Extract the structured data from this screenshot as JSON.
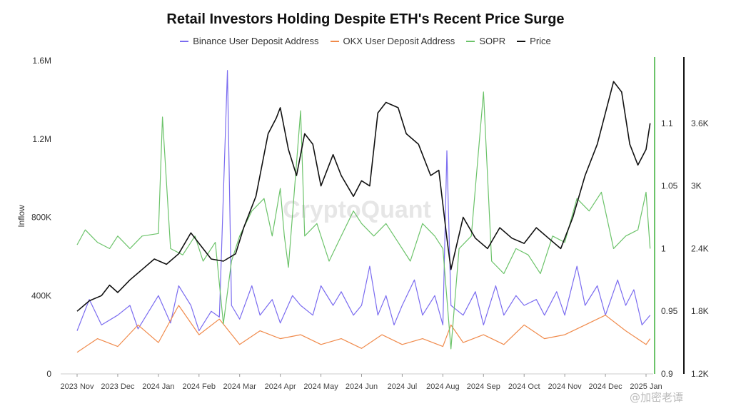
{
  "chart_data": {
    "type": "line",
    "title": "Retail Investors Holding Despite ETH's Recent Price Surge",
    "ylabel": "Inflow",
    "watermark": "CryptoQuant",
    "attribution": "@加密老谭",
    "x_ticks": [
      "2023 Nov",
      "2023 Dec",
      "2024 Jan",
      "2024 Feb",
      "2024 Mar",
      "2024 Apr",
      "2024 May",
      "2024 Jun",
      "2024 Jul",
      "2024 Aug",
      "2024 Sep",
      "2024 Oct",
      "2024 Nov",
      "2024 Dec",
      "2025 Jan"
    ],
    "axes": {
      "inflow": {
        "min": 0,
        "max": 1600000,
        "ticks": [
          "0",
          "400K",
          "800K",
          "1.2M",
          "1.6M"
        ]
      },
      "sopr": {
        "min": 0.9,
        "max": 1.15,
        "ticks": [
          "0.9",
          "0.95",
          "1",
          "1.05",
          "1.1"
        ]
      },
      "price": {
        "min": 1200,
        "max": 4200,
        "ticks": [
          "1.2K",
          "1.8K",
          "2.4K",
          "3K",
          "3.6K"
        ]
      }
    },
    "legend_position": "top-center",
    "grid": false,
    "series": [
      {
        "name": "Binance User Deposit Address",
        "color": "#7b6cf0",
        "axis": "inflow",
        "points": [
          [
            0,
            220000
          ],
          [
            0.3,
            380000
          ],
          [
            0.6,
            250000
          ],
          [
            1,
            300000
          ],
          [
            1.3,
            350000
          ],
          [
            1.5,
            230000
          ],
          [
            2,
            400000
          ],
          [
            2.3,
            260000
          ],
          [
            2.5,
            450000
          ],
          [
            2.8,
            350000
          ],
          [
            3,
            220000
          ],
          [
            3.3,
            320000
          ],
          [
            3.5,
            290000
          ],
          [
            3.7,
            1550000
          ],
          [
            3.8,
            350000
          ],
          [
            4,
            280000
          ],
          [
            4.3,
            450000
          ],
          [
            4.5,
            300000
          ],
          [
            4.8,
            380000
          ],
          [
            5,
            260000
          ],
          [
            5.3,
            400000
          ],
          [
            5.5,
            350000
          ],
          [
            5.8,
            300000
          ],
          [
            6,
            450000
          ],
          [
            6.3,
            350000
          ],
          [
            6.5,
            420000
          ],
          [
            6.8,
            300000
          ],
          [
            7,
            350000
          ],
          [
            7.2,
            550000
          ],
          [
            7.4,
            300000
          ],
          [
            7.6,
            400000
          ],
          [
            7.8,
            250000
          ],
          [
            8,
            350000
          ],
          [
            8.3,
            480000
          ],
          [
            8.5,
            300000
          ],
          [
            8.8,
            400000
          ],
          [
            9,
            250000
          ],
          [
            9.1,
            1140000
          ],
          [
            9.2,
            350000
          ],
          [
            9.5,
            300000
          ],
          [
            9.8,
            420000
          ],
          [
            10,
            250000
          ],
          [
            10.3,
            450000
          ],
          [
            10.5,
            300000
          ],
          [
            10.8,
            400000
          ],
          [
            11,
            350000
          ],
          [
            11.3,
            380000
          ],
          [
            11.5,
            300000
          ],
          [
            11.8,
            420000
          ],
          [
            12,
            300000
          ],
          [
            12.3,
            550000
          ],
          [
            12.5,
            350000
          ],
          [
            12.8,
            450000
          ],
          [
            13,
            300000
          ],
          [
            13.3,
            480000
          ],
          [
            13.5,
            350000
          ],
          [
            13.7,
            430000
          ],
          [
            13.9,
            250000
          ],
          [
            14.1,
            300000
          ]
        ]
      },
      {
        "name": "OKX User Deposit Address",
        "color": "#f08a4b",
        "axis": "inflow",
        "points": [
          [
            0,
            110000
          ],
          [
            0.5,
            180000
          ],
          [
            1,
            140000
          ],
          [
            1.5,
            250000
          ],
          [
            2,
            160000
          ],
          [
            2.5,
            350000
          ],
          [
            3,
            200000
          ],
          [
            3.5,
            280000
          ],
          [
            4,
            150000
          ],
          [
            4.5,
            220000
          ],
          [
            5,
            180000
          ],
          [
            5.5,
            200000
          ],
          [
            6,
            150000
          ],
          [
            6.5,
            180000
          ],
          [
            7,
            130000
          ],
          [
            7.5,
            200000
          ],
          [
            8,
            150000
          ],
          [
            8.5,
            180000
          ],
          [
            9,
            140000
          ],
          [
            9.2,
            250000
          ],
          [
            9.5,
            160000
          ],
          [
            10,
            200000
          ],
          [
            10.5,
            150000
          ],
          [
            11,
            250000
          ],
          [
            11.5,
            180000
          ],
          [
            12,
            200000
          ],
          [
            12.5,
            250000
          ],
          [
            13,
            300000
          ],
          [
            13.5,
            220000
          ],
          [
            14,
            150000
          ],
          [
            14.1,
            180000
          ]
        ]
      },
      {
        "name": "SOPR",
        "color": "#6cc36a",
        "axis": "sopr",
        "points": [
          [
            0,
            1.003
          ],
          [
            0.2,
            1.015
          ],
          [
            0.5,
            1.005
          ],
          [
            0.8,
            1.0
          ],
          [
            1,
            1.01
          ],
          [
            1.3,
            1.0
          ],
          [
            1.6,
            1.01
          ],
          [
            2,
            1.012
          ],
          [
            2.1,
            1.105
          ],
          [
            2.3,
            1.0
          ],
          [
            2.6,
            0.995
          ],
          [
            2.9,
            1.01
          ],
          [
            3.1,
            0.99
          ],
          [
            3.4,
            1.005
          ],
          [
            3.6,
            0.94
          ],
          [
            3.8,
            0.99
          ],
          [
            4,
            1.01
          ],
          [
            4.3,
            1.03
          ],
          [
            4.6,
            1.04
          ],
          [
            4.8,
            1.01
          ],
          [
            5,
            1.048
          ],
          [
            5.1,
            1.01
          ],
          [
            5.2,
            0.985
          ],
          [
            5.5,
            1.11
          ],
          [
            5.6,
            1.01
          ],
          [
            5.9,
            1.02
          ],
          [
            6.2,
            0.99
          ],
          [
            6.5,
            1.01
          ],
          [
            6.8,
            1.03
          ],
          [
            7,
            1.02
          ],
          [
            7.3,
            1.01
          ],
          [
            7.6,
            1.02
          ],
          [
            7.9,
            1.005
          ],
          [
            8.2,
            0.99
          ],
          [
            8.5,
            1.02
          ],
          [
            8.8,
            1.01
          ],
          [
            9,
            1.0
          ],
          [
            9.2,
            0.92
          ],
          [
            9.4,
            1.0
          ],
          [
            9.7,
            1.01
          ],
          [
            10,
            1.125
          ],
          [
            10.2,
            0.99
          ],
          [
            10.5,
            0.98
          ],
          [
            10.8,
            1.0
          ],
          [
            11.1,
            0.995
          ],
          [
            11.4,
            0.98
          ],
          [
            11.7,
            1.01
          ],
          [
            12,
            1.005
          ],
          [
            12.3,
            1.04
          ],
          [
            12.6,
            1.03
          ],
          [
            12.9,
            1.045
          ],
          [
            13.2,
            1.0
          ],
          [
            13.5,
            1.01
          ],
          [
            13.8,
            1.015
          ],
          [
            14,
            1.045
          ],
          [
            14.1,
            1.0
          ]
        ]
      },
      {
        "name": "Price",
        "color": "#111111",
        "axis": "price",
        "points": [
          [
            0,
            1800
          ],
          [
            0.3,
            1900
          ],
          [
            0.6,
            1950
          ],
          [
            0.8,
            2050
          ],
          [
            1,
            1980
          ],
          [
            1.3,
            2100
          ],
          [
            1.6,
            2200
          ],
          [
            1.9,
            2300
          ],
          [
            2.2,
            2250
          ],
          [
            2.5,
            2350
          ],
          [
            2.8,
            2550
          ],
          [
            3,
            2450
          ],
          [
            3.3,
            2300
          ],
          [
            3.6,
            2280
          ],
          [
            3.9,
            2350
          ],
          [
            4.1,
            2600
          ],
          [
            4.4,
            2900
          ],
          [
            4.7,
            3500
          ],
          [
            4.9,
            3650
          ],
          [
            5,
            3750
          ],
          [
            5.1,
            3550
          ],
          [
            5.2,
            3350
          ],
          [
            5.4,
            3100
          ],
          [
            5.6,
            3500
          ],
          [
            5.8,
            3400
          ],
          [
            6,
            3000
          ],
          [
            6.3,
            3300
          ],
          [
            6.5,
            3100
          ],
          [
            6.8,
            2900
          ],
          [
            7,
            3050
          ],
          [
            7.2,
            3000
          ],
          [
            7.4,
            3700
          ],
          [
            7.6,
            3800
          ],
          [
            7.9,
            3750
          ],
          [
            8.1,
            3500
          ],
          [
            8.4,
            3400
          ],
          [
            8.7,
            3100
          ],
          [
            8.9,
            3150
          ],
          [
            9.1,
            2500
          ],
          [
            9.2,
            2200
          ],
          [
            9.5,
            2700
          ],
          [
            9.8,
            2500
          ],
          [
            10.1,
            2400
          ],
          [
            10.4,
            2600
          ],
          [
            10.7,
            2500
          ],
          [
            11,
            2450
          ],
          [
            11.3,
            2600
          ],
          [
            11.6,
            2500
          ],
          [
            11.9,
            2400
          ],
          [
            12.2,
            2700
          ],
          [
            12.5,
            3100
          ],
          [
            12.8,
            3400
          ],
          [
            13,
            3700
          ],
          [
            13.2,
            4000
          ],
          [
            13.4,
            3900
          ],
          [
            13.6,
            3400
          ],
          [
            13.8,
            3200
          ],
          [
            14,
            3350
          ],
          [
            14.1,
            3600
          ]
        ]
      }
    ]
  }
}
